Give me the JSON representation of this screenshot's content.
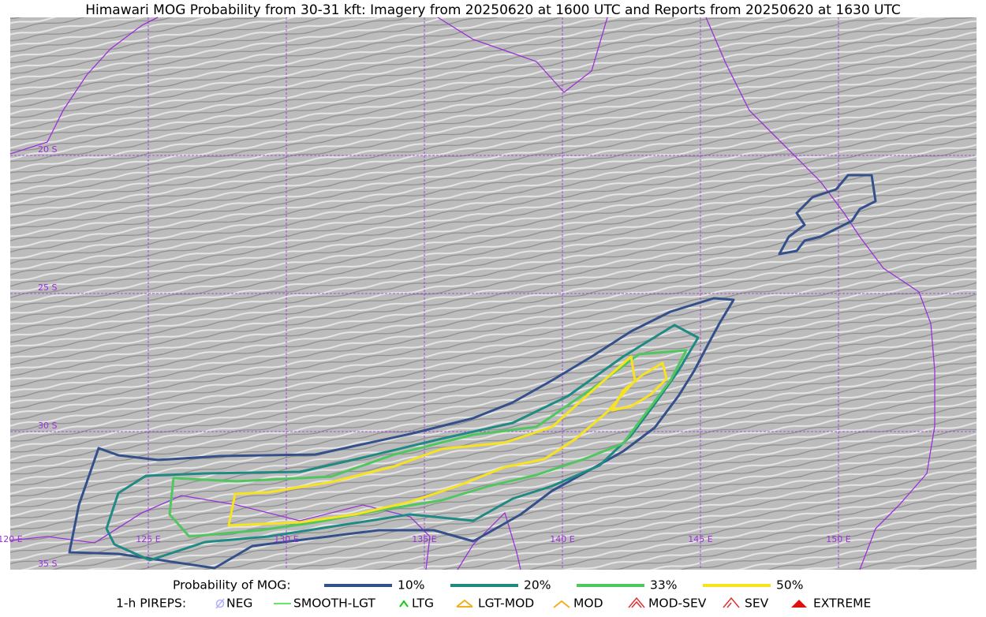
{
  "header": {
    "title": "Himawari MOG Probability from 30-31 kft: Imagery from 20250620 at 1600 UTC and Reports from 20250620 at 1630 UTC"
  },
  "map": {
    "latitude_labels": [
      "20 S",
      "25 S",
      "30 S",
      "35 S"
    ],
    "longitude_labels": [
      "120 E",
      "125 E",
      "130 E",
      "135 E",
      "140 E",
      "145 E",
      "150 E"
    ]
  },
  "legend": {
    "probability": {
      "label": "Probability of MOG:",
      "items": [
        {
          "label": "10%",
          "color": "#34508a"
        },
        {
          "label": "20%",
          "color": "#1f8a84"
        },
        {
          "label": "33%",
          "color": "#4fc65e"
        },
        {
          "label": "50%",
          "color": "#f7e31f"
        }
      ]
    },
    "pireps": {
      "label": "1-h PIREPS:",
      "items": [
        {
          "label": "NEG",
          "color": "#b0b0ff"
        },
        {
          "label": "SMOOTH-LGT",
          "color": "#33dd33"
        },
        {
          "label": "LTG",
          "color": "#11cc11"
        },
        {
          "label": "LGT-MOD",
          "color": "#f0b020"
        },
        {
          "label": "MOD",
          "color": "#f0b020"
        },
        {
          "label": "MOD-SEV",
          "color": "#e03030"
        },
        {
          "label": "SEV",
          "color": "#e03030"
        },
        {
          "label": "EXTREME",
          "color": "#e01010"
        }
      ]
    }
  }
}
